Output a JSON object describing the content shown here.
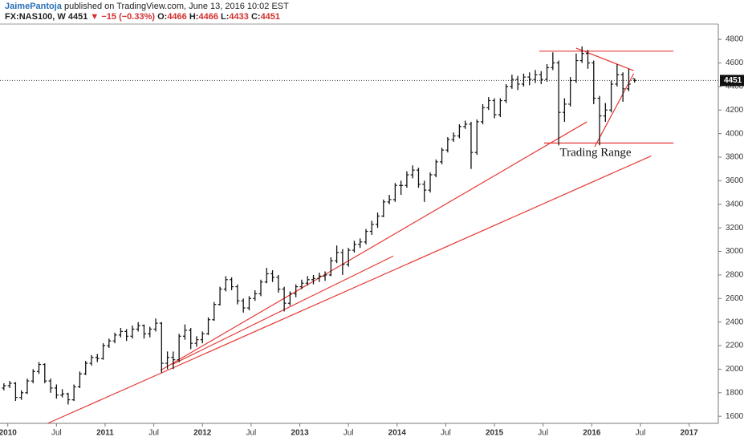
{
  "chart_data": {
    "type": "ohlc",
    "author": "JaimePantoja",
    "published": "published on TradingView.com, June 13, 2016 10:02 EST",
    "symbol": "FX:NAS100, W",
    "change": "−15 (−0.33%)",
    "ohlc_labels": [
      "O:",
      "H:",
      "L:",
      "C:"
    ],
    "annotation": "Trading Range",
    "color": "#111111",
    "line_color": "#e53935",
    "xlim": [
      2009.92,
      2017.3
    ],
    "ylim": [
      1540,
      4930
    ],
    "yticks": [
      1600,
      1800,
      2000,
      2200,
      2400,
      2600,
      2800,
      3000,
      3200,
      3400,
      3600,
      3800,
      4000,
      4200,
      4400,
      4600,
      4800
    ],
    "xticks": [
      2010,
      {
        "value": 2010.5,
        "label": "Jul"
      },
      2011,
      {
        "value": 2011.5,
        "label": "Jul"
      },
      2012,
      {
        "value": 2012.5,
        "label": "Jul"
      },
      2013,
      {
        "value": 2013.5,
        "label": "Jul"
      },
      2014,
      {
        "value": 2014.5,
        "label": "Jul"
      },
      2015,
      {
        "value": 2015.5,
        "label": "Jul"
      },
      2016,
      {
        "value": 2016.5,
        "label": "Jul"
      },
      2017
    ],
    "x": [
      2009.96,
      2010.02,
      2010.08,
      2010.14,
      2010.2,
      2010.26,
      2010.32,
      2010.38,
      2010.44,
      2010.5,
      2010.56,
      2010.62,
      2010.68,
      2010.74,
      2010.8,
      2010.86,
      2010.92,
      2010.98,
      2011.04,
      2011.1,
      2011.16,
      2011.22,
      2011.28,
      2011.34,
      2011.4,
      2011.46,
      2011.52,
      2011.58,
      2011.64,
      2011.7,
      2011.76,
      2011.82,
      2011.88,
      2011.94,
      2012.0,
      2012.06,
      2012.12,
      2012.18,
      2012.24,
      2012.3,
      2012.36,
      2012.42,
      2012.48,
      2012.54,
      2012.6,
      2012.66,
      2012.72,
      2012.78,
      2012.84,
      2012.9,
      2012.96,
      2013.02,
      2013.08,
      2013.14,
      2013.2,
      2013.26,
      2013.32,
      2013.38,
      2013.44,
      2013.5,
      2013.56,
      2013.62,
      2013.68,
      2013.74,
      2013.8,
      2013.86,
      2013.92,
      2013.98,
      2014.04,
      2014.1,
      2014.16,
      2014.22,
      2014.28,
      2014.34,
      2014.4,
      2014.46,
      2014.52,
      2014.58,
      2014.64,
      2014.7,
      2014.76,
      2014.82,
      2014.88,
      2014.94,
      2015.0,
      2015.06,
      2015.12,
      2015.18,
      2015.24,
      2015.3,
      2015.36,
      2015.42,
      2015.48,
      2015.54,
      2015.6,
      2015.66,
      2015.72,
      2015.78,
      2015.84,
      2015.9,
      2015.96,
      2016.02,
      2016.08,
      2016.14,
      2016.2,
      2016.26,
      2016.32,
      2016.38,
      2016.44
    ],
    "ohlc": [
      [
        1840,
        1880,
        1820,
        1860
      ],
      [
        1860,
        1900,
        1840,
        1880
      ],
      [
        1880,
        1890,
        1730,
        1760
      ],
      [
        1760,
        1820,
        1740,
        1800
      ],
      [
        1800,
        1920,
        1790,
        1900
      ],
      [
        1900,
        2000,
        1880,
        1980
      ],
      [
        1980,
        2060,
        1960,
        2040
      ],
      [
        2040,
        2050,
        1880,
        1900
      ],
      [
        1900,
        1920,
        1800,
        1840
      ],
      [
        1840,
        1870,
        1750,
        1780
      ],
      [
        1780,
        1830,
        1760,
        1790
      ],
      [
        1790,
        1800,
        1700,
        1740
      ],
      [
        1740,
        1870,
        1730,
        1850
      ],
      [
        1850,
        1980,
        1840,
        1960
      ],
      [
        1960,
        2070,
        1950,
        2050
      ],
      [
        2050,
        2120,
        2030,
        2100
      ],
      [
        2100,
        2130,
        2060,
        2090
      ],
      [
        2090,
        2220,
        2080,
        2200
      ],
      [
        2200,
        2260,
        2180,
        2240
      ],
      [
        2240,
        2310,
        2220,
        2290
      ],
      [
        2290,
        2350,
        2270,
        2320
      ],
      [
        2320,
        2340,
        2240,
        2280
      ],
      [
        2280,
        2370,
        2260,
        2340
      ],
      [
        2340,
        2400,
        2320,
        2370
      ],
      [
        2370,
        2380,
        2260,
        2300
      ],
      [
        2300,
        2360,
        2270,
        2340
      ],
      [
        2340,
        2430,
        2320,
        2390
      ],
      [
        2390,
        2400,
        1970,
        2050
      ],
      [
        2050,
        2150,
        2000,
        2100
      ],
      [
        2100,
        2150,
        2000,
        2080
      ],
      [
        2080,
        2300,
        2060,
        2280
      ],
      [
        2280,
        2380,
        2250,
        2330
      ],
      [
        2330,
        2350,
        2170,
        2220
      ],
      [
        2220,
        2280,
        2190,
        2250
      ],
      [
        2250,
        2320,
        2220,
        2300
      ],
      [
        2300,
        2440,
        2290,
        2420
      ],
      [
        2420,
        2570,
        2410,
        2550
      ],
      [
        2550,
        2700,
        2540,
        2680
      ],
      [
        2680,
        2790,
        2660,
        2760
      ],
      [
        2760,
        2780,
        2670,
        2700
      ],
      [
        2700,
        2720,
        2550,
        2580
      ],
      [
        2580,
        2600,
        2480,
        2520
      ],
      [
        2520,
        2620,
        2500,
        2600
      ],
      [
        2600,
        2670,
        2580,
        2640
      ],
      [
        2640,
        2760,
        2620,
        2740
      ],
      [
        2740,
        2860,
        2730,
        2810
      ],
      [
        2810,
        2840,
        2740,
        2780
      ],
      [
        2780,
        2800,
        2650,
        2680
      ],
      [
        2680,
        2700,
        2490,
        2560
      ],
      [
        2560,
        2660,
        2540,
        2640
      ],
      [
        2640,
        2720,
        2610,
        2700
      ],
      [
        2700,
        2760,
        2680,
        2730
      ],
      [
        2730,
        2790,
        2710,
        2760
      ],
      [
        2760,
        2800,
        2720,
        2770
      ],
      [
        2770,
        2820,
        2740,
        2790
      ],
      [
        2790,
        2830,
        2750,
        2800
      ],
      [
        2800,
        2950,
        2790,
        2920
      ],
      [
        2920,
        3050,
        2900,
        2990
      ],
      [
        2990,
        3020,
        2800,
        2890
      ],
      [
        2890,
        3030,
        2870,
        3010
      ],
      [
        3010,
        3090,
        2990,
        3060
      ],
      [
        3060,
        3110,
        3030,
        3080
      ],
      [
        3080,
        3190,
        3060,
        3170
      ],
      [
        3170,
        3260,
        3140,
        3230
      ],
      [
        3230,
        3330,
        3200,
        3300
      ],
      [
        3300,
        3440,
        3290,
        3420
      ],
      [
        3420,
        3480,
        3400,
        3440
      ],
      [
        3440,
        3580,
        3420,
        3560
      ],
      [
        3560,
        3600,
        3480,
        3560
      ],
      [
        3560,
        3680,
        3540,
        3650
      ],
      [
        3650,
        3730,
        3620,
        3690
      ],
      [
        3690,
        3710,
        3540,
        3570
      ],
      [
        3570,
        3600,
        3420,
        3520
      ],
      [
        3520,
        3670,
        3500,
        3650
      ],
      [
        3650,
        3780,
        3630,
        3760
      ],
      [
        3760,
        3880,
        3740,
        3860
      ],
      [
        3860,
        3970,
        3840,
        3950
      ],
      [
        3950,
        4010,
        3930,
        3980
      ],
      [
        3980,
        4080,
        3960,
        4060
      ],
      [
        4060,
        4110,
        4040,
        4080
      ],
      [
        4080,
        4100,
        3700,
        3840
      ],
      [
        3840,
        4120,
        3820,
        4100
      ],
      [
        4100,
        4250,
        4080,
        4220
      ],
      [
        4220,
        4310,
        4200,
        4280
      ],
      [
        4280,
        4300,
        4130,
        4160
      ],
      [
        4160,
        4300,
        4140,
        4280
      ],
      [
        4280,
        4420,
        4260,
        4400
      ],
      [
        4400,
        4500,
        4380,
        4460
      ],
      [
        4460,
        4490,
        4370,
        4420
      ],
      [
        4420,
        4510,
        4400,
        4480
      ],
      [
        4480,
        4520,
        4410,
        4460
      ],
      [
        4460,
        4540,
        4430,
        4500
      ],
      [
        4500,
        4530,
        4420,
        4460
      ],
      [
        4460,
        4590,
        4440,
        4560
      ],
      [
        4560,
        4690,
        4540,
        4600
      ],
      [
        4600,
        4620,
        3900,
        4180
      ],
      [
        4180,
        4300,
        4100,
        4250
      ],
      [
        4250,
        4480,
        4230,
        4450
      ],
      [
        4450,
        4680,
        4430,
        4620
      ],
      [
        4620,
        4740,
        4600,
        4680
      ],
      [
        4680,
        4710,
        4550,
        4600
      ],
      [
        4600,
        4620,
        4250,
        4300
      ],
      [
        4300,
        4320,
        3900,
        4150
      ],
      [
        4150,
        4260,
        4100,
        4200
      ],
      [
        4200,
        4450,
        4180,
        4420
      ],
      [
        4420,
        4590,
        4400,
        4500
      ],
      [
        4500,
        4520,
        4270,
        4380
      ],
      [
        4380,
        4550,
        4360,
        4420
      ],
      [
        4466,
        4466,
        4433,
        4451
      ]
    ],
    "trend_lines": [
      {
        "x": [
          2015.46,
          2016.84
        ],
        "y": [
          4700,
          4700
        ]
      },
      {
        "x": [
          2015.51,
          2016.84
        ],
        "y": [
          3920,
          3920
        ]
      },
      {
        "x": [
          2015.84,
          2016.43
        ],
        "y": [
          4725,
          4535
        ]
      },
      {
        "x": [
          2016.03,
          2016.43
        ],
        "y": [
          3888,
          4507
        ]
      },
      {
        "x": [
          2011.57,
          2015.95
        ],
        "y": [
          1990,
          4100
        ]
      },
      {
        "x": [
          2011.69,
          2013.96
        ],
        "y": [
          2040,
          2960
        ]
      },
      {
        "x": [
          2010.41,
          2016.61
        ],
        "y": [
          1540,
          3810
        ]
      }
    ]
  }
}
